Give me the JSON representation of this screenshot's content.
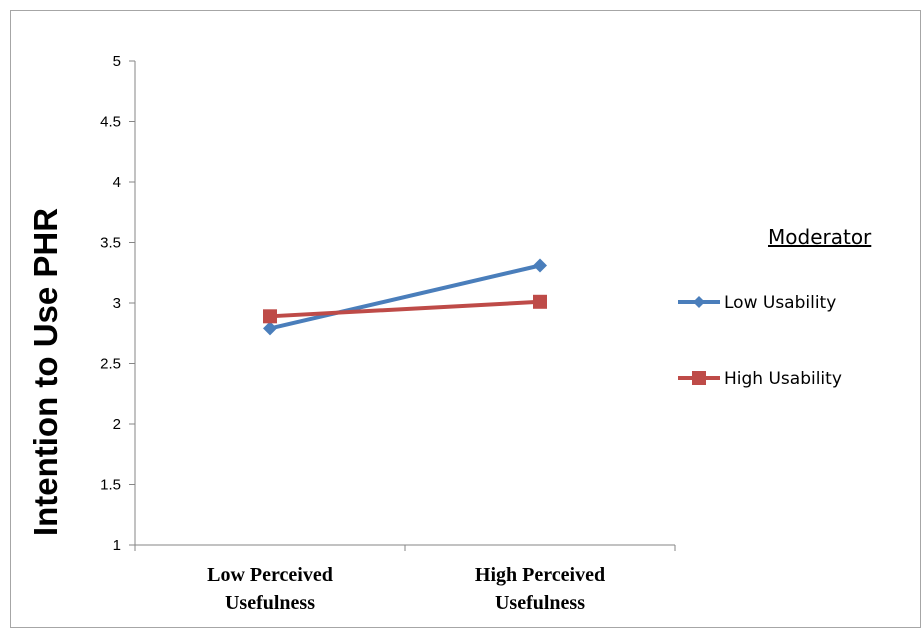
{
  "chart_data": {
    "type": "line",
    "categories": [
      "Low Perceived Usefulness",
      "High Perceived Usefulness"
    ],
    "category_lines": [
      [
        "Low Perceived",
        "Usefulness"
      ],
      [
        "High Perceived",
        "Usefulness"
      ]
    ],
    "ylabel": "Intention to Use PHR",
    "ylim": [
      1,
      5
    ],
    "yticks": [
      "1",
      "1.5",
      "2",
      "2.5",
      "3",
      "3.5",
      "4",
      "4.5",
      "5"
    ],
    "grid": false,
    "legend": {
      "title": "Moderator",
      "placement": "right"
    },
    "series": [
      {
        "name": "Low Usability",
        "values": [
          2.79,
          3.31
        ],
        "color": "#4a7ebb",
        "marker": "diamond"
      },
      {
        "name": "High Usability",
        "values": [
          2.89,
          3.01
        ],
        "color": "#be4b48",
        "marker": "square"
      }
    ]
  }
}
